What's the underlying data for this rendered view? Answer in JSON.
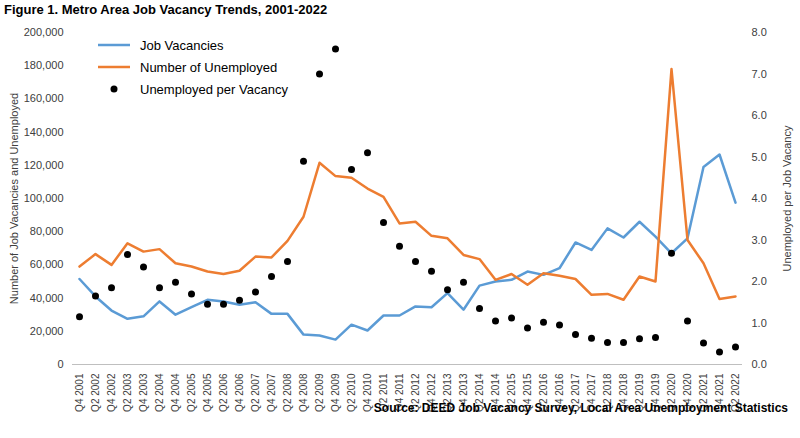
{
  "chart_data": {
    "type": "line",
    "title": "Figure 1. Metro Area Job Vacancy Trends, 2001-2022",
    "caption": "Source: DEED Job Vacancy Survey, Local Area Unemployment Statistics",
    "y_label": "Number of Job Vacancies and Unemployed",
    "y2_label": "Unemployed per Job Vacancy",
    "categories": [
      "Q4 2001",
      "Q2 2002",
      "Q4 2002",
      "Q2 2003",
      "Q4 2003",
      "Q2 2004",
      "Q4 2004",
      "Q2 2005",
      "Q4 2005",
      "Q2 2006",
      "Q4 2006",
      "Q2 2007",
      "Q4 2007",
      "Q2 2008",
      "Q4 2008",
      "Q2 2009",
      "Q4 2009",
      "Q2 2010",
      "Q4 2010",
      "Q2 2011",
      "Q4 2011",
      "Q2 2012",
      "Q4 2012",
      "Q2 2013",
      "Q4 2013",
      "Q2 2014",
      "Q4 2014",
      "Q2 2015",
      "Q4 2015",
      "Q2 2016",
      "Q4 2016",
      "Q2 2017",
      "Q4 2017",
      "Q2 2018",
      "Q4 2018",
      "Q2 2019",
      "Q4 2019",
      "Q2 2020",
      "Q4 2020",
      "Q2 2021",
      "Q4 2021",
      "Q2 2022"
    ],
    "series": [
      {
        "name": "Job Vacancies",
        "type": "line",
        "color": "#5b9bd5",
        "values": [
          51500,
          41000,
          32500,
          27500,
          29000,
          38000,
          30000,
          34500,
          39000,
          38000,
          36000,
          37500,
          30500,
          30500,
          18000,
          17500,
          15000,
          24000,
          20500,
          29500,
          29500,
          35000,
          34500,
          43000,
          33000,
          47500,
          50000,
          51000,
          56000,
          54000,
          58000,
          73500,
          69000,
          82000,
          76500,
          86000,
          77000,
          67000,
          76000,
          119000,
          126500,
          97500
        ]
      },
      {
        "name": "Number of Unemployed",
        "type": "line",
        "color": "#ed7d31",
        "values": [
          59000,
          66500,
          60000,
          73000,
          68000,
          69500,
          61000,
          59000,
          56000,
          54500,
          56500,
          65000,
          64500,
          74500,
          89000,
          121500,
          113500,
          112500,
          106000,
          101000,
          85000,
          86000,
          77500,
          76000,
          66000,
          63500,
          51000,
          54500,
          48000,
          55000,
          53500,
          51500,
          42000,
          42500,
          39000,
          53000,
          50000,
          178000,
          75000,
          61000,
          39500,
          41000
        ]
      },
      {
        "name": "Unemployed per Vacancy",
        "type": "scatter",
        "marker": "circle",
        "axis": "y2",
        "color": "#000000",
        "values": [
          1.15,
          1.65,
          1.85,
          2.65,
          2.35,
          1.85,
          1.98,
          1.7,
          1.45,
          1.45,
          1.55,
          1.75,
          2.12,
          2.48,
          4.9,
          7.0,
          7.6,
          4.7,
          5.1,
          3.42,
          2.85,
          2.48,
          2.25,
          1.8,
          1.98,
          1.35,
          1.05,
          1.12,
          0.88,
          1.02,
          0.95,
          0.72,
          0.63,
          0.53,
          0.53,
          0.62,
          0.65,
          2.68,
          1.05,
          0.52,
          0.3,
          0.42
        ]
      }
    ],
    "ylim": [
      0,
      200000
    ],
    "yticks": [
      0,
      {
        "value": 20000,
        "label": "20,000"
      },
      {
        "value": 40000,
        "label": "40,000"
      },
      {
        "value": 60000,
        "label": "60,000"
      },
      {
        "value": 80000,
        "label": "80,000"
      },
      {
        "value": 100000,
        "label": "100,000"
      },
      {
        "value": 120000,
        "label": "120,000"
      },
      {
        "value": 140000,
        "label": "140,000"
      },
      {
        "value": 160000,
        "label": "160,000"
      },
      {
        "value": 180000,
        "label": "180,000"
      },
      {
        "value": 200000,
        "label": "200,000"
      }
    ],
    "y2lim": [
      0,
      8
    ],
    "y2ticks": [
      {
        "value": 0,
        "label": "0.0"
      },
      {
        "value": 1,
        "label": "1.0"
      },
      {
        "value": 2,
        "label": "2.0"
      },
      {
        "value": 3,
        "label": "3.0"
      },
      {
        "value": 4,
        "label": "4.0"
      },
      {
        "value": 5,
        "label": "5.0"
      },
      {
        "value": 6,
        "label": "6.0"
      },
      {
        "value": 7,
        "label": "7.0"
      },
      {
        "value": 8,
        "label": "8.0"
      }
    ],
    "legend": "top-left",
    "grid": false
  }
}
